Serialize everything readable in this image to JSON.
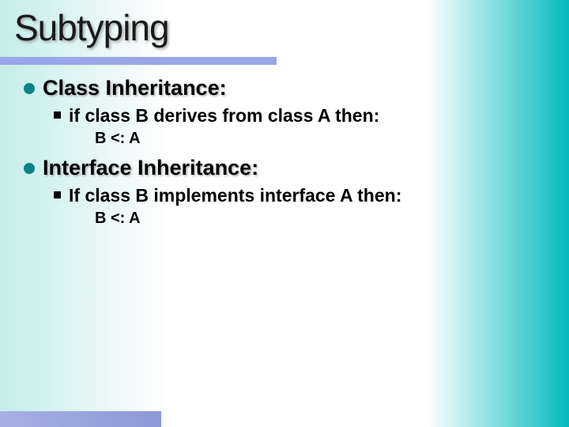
{
  "slide": {
    "title": "Subtyping",
    "title_color": "#1a1a1a",
    "title_fontsize": 46,
    "underline_color": "#9aa6e6",
    "background_gradient": [
      "#c5ede9",
      "#ffffff",
      "#ffffff",
      "#02babd"
    ],
    "bullet_circle_color": "#0a8486",
    "bullet_square_color": "#000000",
    "footer_gradient": [
      "#a6b0e4",
      "#8d98d6"
    ],
    "items": [
      {
        "text": "Class Inheritance:",
        "fontsize": 27,
        "sub": [
          {
            "text": "if class B derives from class A then:",
            "fontsize": 23,
            "sub": [
              {
                "text": "B <: A",
                "fontsize": 20
              }
            ]
          }
        ]
      },
      {
        "text": "Interface Inheritance:",
        "fontsize": 27,
        "sub": [
          {
            "text": "If class B implements interface A then:",
            "fontsize": 23,
            "sub": [
              {
                "text": "B <: A",
                "fontsize": 20
              }
            ]
          }
        ]
      }
    ]
  }
}
